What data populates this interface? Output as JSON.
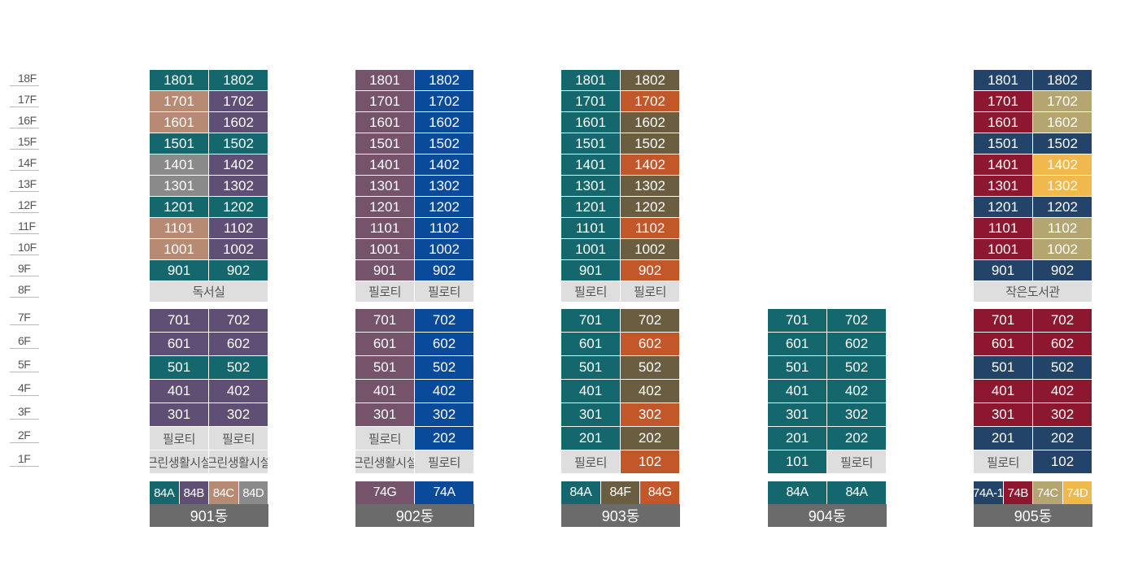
{
  "colors": {
    "teal": "#15676e",
    "purple": "#5f4f74",
    "mauve": "#75536a",
    "blue": "#0a4a9a",
    "olive": "#6b5e40",
    "orange": "#c2572a",
    "rose": "#b78a74",
    "gray": "#8a8a8a",
    "navy": "#234468",
    "crimson": "#8e1730",
    "khaki": "#b5a570",
    "yellow": "#f1b94d",
    "light": "#dedede",
    "label_bg": "#6b6b6b"
  },
  "floor_labels": [
    "18F",
    "17F",
    "16F",
    "15F",
    "14F",
    "13F",
    "12F",
    "11F",
    "10F",
    "9F",
    "8F",
    "7F",
    "6F",
    "5F",
    "4F",
    "3F",
    "2F",
    "1F"
  ],
  "buildings": [
    {
      "name": "901동",
      "floors": {
        "18": [
          [
            "1801",
            "teal"
          ],
          [
            "1802",
            "teal"
          ]
        ],
        "17": [
          [
            "1701",
            "rose"
          ],
          [
            "1702",
            "purple"
          ]
        ],
        "16": [
          [
            "1601",
            "rose"
          ],
          [
            "1602",
            "purple"
          ]
        ],
        "15": [
          [
            "1501",
            "teal"
          ],
          [
            "1502",
            "teal"
          ]
        ],
        "14": [
          [
            "1401",
            "gray"
          ],
          [
            "1402",
            "purple"
          ]
        ],
        "13": [
          [
            "1301",
            "gray"
          ],
          [
            "1302",
            "purple"
          ]
        ],
        "12": [
          [
            "1201",
            "teal"
          ],
          [
            "1202",
            "teal"
          ]
        ],
        "11": [
          [
            "1101",
            "rose"
          ],
          [
            "1102",
            "purple"
          ]
        ],
        "10": [
          [
            "1001",
            "rose"
          ],
          [
            "1002",
            "purple"
          ]
        ],
        "9": [
          [
            "901",
            "teal"
          ],
          [
            "902",
            "teal"
          ]
        ],
        "8": [
          [
            "독서실",
            "light"
          ]
        ],
        "7": [
          [
            "701",
            "purple"
          ],
          [
            "702",
            "purple"
          ]
        ],
        "6": [
          [
            "601",
            "purple"
          ],
          [
            "602",
            "purple"
          ]
        ],
        "5": [
          [
            "501",
            "teal"
          ],
          [
            "502",
            "teal"
          ]
        ],
        "4": [
          [
            "401",
            "purple"
          ],
          [
            "402",
            "purple"
          ]
        ],
        "3": [
          [
            "301",
            "purple"
          ],
          [
            "302",
            "purple"
          ]
        ],
        "2": [
          [
            "필로티",
            "light"
          ],
          [
            "필로티",
            "light"
          ]
        ],
        "1": [
          [
            "근린생활시설",
            "light"
          ],
          [
            "근린생활시설",
            "light"
          ]
        ]
      },
      "types": [
        [
          "84A",
          "teal"
        ],
        [
          "84B",
          "purple"
        ],
        [
          "84C",
          "rose"
        ],
        [
          "84D",
          "gray"
        ]
      ]
    },
    {
      "name": "902동",
      "floors": {
        "18": [
          [
            "1801",
            "mauve"
          ],
          [
            "1802",
            "blue"
          ]
        ],
        "17": [
          [
            "1701",
            "mauve"
          ],
          [
            "1702",
            "blue"
          ]
        ],
        "16": [
          [
            "1601",
            "mauve"
          ],
          [
            "1602",
            "blue"
          ]
        ],
        "15": [
          [
            "1501",
            "mauve"
          ],
          [
            "1502",
            "blue"
          ]
        ],
        "14": [
          [
            "1401",
            "mauve"
          ],
          [
            "1402",
            "blue"
          ]
        ],
        "13": [
          [
            "1301",
            "mauve"
          ],
          [
            "1302",
            "blue"
          ]
        ],
        "12": [
          [
            "1201",
            "mauve"
          ],
          [
            "1202",
            "blue"
          ]
        ],
        "11": [
          [
            "1101",
            "mauve"
          ],
          [
            "1102",
            "blue"
          ]
        ],
        "10": [
          [
            "1001",
            "mauve"
          ],
          [
            "1002",
            "blue"
          ]
        ],
        "9": [
          [
            "901",
            "mauve"
          ],
          [
            "902",
            "blue"
          ]
        ],
        "8": [
          [
            "필로티",
            "light"
          ],
          [
            "필로티",
            "light"
          ]
        ],
        "7": [
          [
            "701",
            "mauve"
          ],
          [
            "702",
            "blue"
          ]
        ],
        "6": [
          [
            "601",
            "mauve"
          ],
          [
            "602",
            "blue"
          ]
        ],
        "5": [
          [
            "501",
            "mauve"
          ],
          [
            "502",
            "blue"
          ]
        ],
        "4": [
          [
            "401",
            "mauve"
          ],
          [
            "402",
            "blue"
          ]
        ],
        "3": [
          [
            "301",
            "mauve"
          ],
          [
            "302",
            "blue"
          ]
        ],
        "2": [
          [
            "필로티",
            "light"
          ],
          [
            "202",
            "blue"
          ]
        ],
        "1": [
          [
            "근린생활시설",
            "light"
          ],
          [
            "필로티",
            "light"
          ]
        ]
      },
      "types": [
        [
          "74G",
          "mauve"
        ],
        [
          "74A",
          "blue"
        ]
      ]
    },
    {
      "name": "903동",
      "floors": {
        "18": [
          [
            "1801",
            "teal"
          ],
          [
            "1802",
            "olive"
          ]
        ],
        "17": [
          [
            "1701",
            "teal"
          ],
          [
            "1702",
            "orange"
          ]
        ],
        "16": [
          [
            "1601",
            "teal"
          ],
          [
            "1602",
            "olive"
          ]
        ],
        "15": [
          [
            "1501",
            "teal"
          ],
          [
            "1502",
            "olive"
          ]
        ],
        "14": [
          [
            "1401",
            "teal"
          ],
          [
            "1402",
            "orange"
          ]
        ],
        "13": [
          [
            "1301",
            "teal"
          ],
          [
            "1302",
            "olive"
          ]
        ],
        "12": [
          [
            "1201",
            "teal"
          ],
          [
            "1202",
            "olive"
          ]
        ],
        "11": [
          [
            "1101",
            "teal"
          ],
          [
            "1102",
            "orange"
          ]
        ],
        "10": [
          [
            "1001",
            "teal"
          ],
          [
            "1002",
            "olive"
          ]
        ],
        "9": [
          [
            "901",
            "teal"
          ],
          [
            "902",
            "orange"
          ]
        ],
        "8": [
          [
            "필로티",
            "light"
          ],
          [
            "필로티",
            "light"
          ]
        ],
        "7": [
          [
            "701",
            "teal"
          ],
          [
            "702",
            "olive"
          ]
        ],
        "6": [
          [
            "601",
            "teal"
          ],
          [
            "602",
            "orange"
          ]
        ],
        "5": [
          [
            "501",
            "teal"
          ],
          [
            "502",
            "olive"
          ]
        ],
        "4": [
          [
            "401",
            "teal"
          ],
          [
            "402",
            "olive"
          ]
        ],
        "3": [
          [
            "301",
            "teal"
          ],
          [
            "302",
            "orange"
          ]
        ],
        "2": [
          [
            "201",
            "teal"
          ],
          [
            "202",
            "olive"
          ]
        ],
        "1": [
          [
            "필로티",
            "light"
          ],
          [
            "102",
            "orange"
          ]
        ]
      },
      "types": [
        [
          "84A",
          "teal"
        ],
        [
          "84F",
          "olive"
        ],
        [
          "84G",
          "orange"
        ]
      ]
    },
    {
      "name": "904동",
      "floors": {
        "7": [
          [
            "701",
            "teal"
          ],
          [
            "702",
            "teal"
          ]
        ],
        "6": [
          [
            "601",
            "teal"
          ],
          [
            "602",
            "teal"
          ]
        ],
        "5": [
          [
            "501",
            "teal"
          ],
          [
            "502",
            "teal"
          ]
        ],
        "4": [
          [
            "401",
            "teal"
          ],
          [
            "402",
            "teal"
          ]
        ],
        "3": [
          [
            "301",
            "teal"
          ],
          [
            "302",
            "teal"
          ]
        ],
        "2": [
          [
            "201",
            "teal"
          ],
          [
            "202",
            "teal"
          ]
        ],
        "1": [
          [
            "101",
            "teal"
          ],
          [
            "필로티",
            "light"
          ]
        ]
      },
      "types": [
        [
          "84A",
          "teal"
        ],
        [
          "84A",
          "teal"
        ]
      ]
    },
    {
      "name": "905동",
      "floors": {
        "18": [
          [
            "1801",
            "navy"
          ],
          [
            "1802",
            "navy"
          ]
        ],
        "17": [
          [
            "1701",
            "crimson"
          ],
          [
            "1702",
            "khaki"
          ]
        ],
        "16": [
          [
            "1601",
            "crimson"
          ],
          [
            "1602",
            "khaki"
          ]
        ],
        "15": [
          [
            "1501",
            "navy"
          ],
          [
            "1502",
            "navy"
          ]
        ],
        "14": [
          [
            "1401",
            "crimson"
          ],
          [
            "1402",
            "yellow"
          ]
        ],
        "13": [
          [
            "1301",
            "crimson"
          ],
          [
            "1302",
            "yellow"
          ]
        ],
        "12": [
          [
            "1201",
            "navy"
          ],
          [
            "1202",
            "navy"
          ]
        ],
        "11": [
          [
            "1101",
            "crimson"
          ],
          [
            "1102",
            "khaki"
          ]
        ],
        "10": [
          [
            "1001",
            "crimson"
          ],
          [
            "1002",
            "khaki"
          ]
        ],
        "9": [
          [
            "901",
            "navy"
          ],
          [
            "902",
            "navy"
          ]
        ],
        "8": [
          [
            "작은도서관",
            "light"
          ]
        ],
        "7": [
          [
            "701",
            "crimson"
          ],
          [
            "702",
            "crimson"
          ]
        ],
        "6": [
          [
            "601",
            "crimson"
          ],
          [
            "602",
            "crimson"
          ]
        ],
        "5": [
          [
            "501",
            "navy"
          ],
          [
            "502",
            "navy"
          ]
        ],
        "4": [
          [
            "401",
            "crimson"
          ],
          [
            "402",
            "crimson"
          ]
        ],
        "3": [
          [
            "301",
            "crimson"
          ],
          [
            "302",
            "crimson"
          ]
        ],
        "2": [
          [
            "201",
            "navy"
          ],
          [
            "202",
            "navy"
          ]
        ],
        "1": [
          [
            "필로티",
            "light"
          ],
          [
            "102",
            "navy"
          ]
        ]
      },
      "types": [
        [
          "74A-1",
          "navy"
        ],
        [
          "74B",
          "crimson"
        ],
        [
          "74C",
          "khaki"
        ],
        [
          "74D",
          "yellow"
        ]
      ]
    }
  ]
}
